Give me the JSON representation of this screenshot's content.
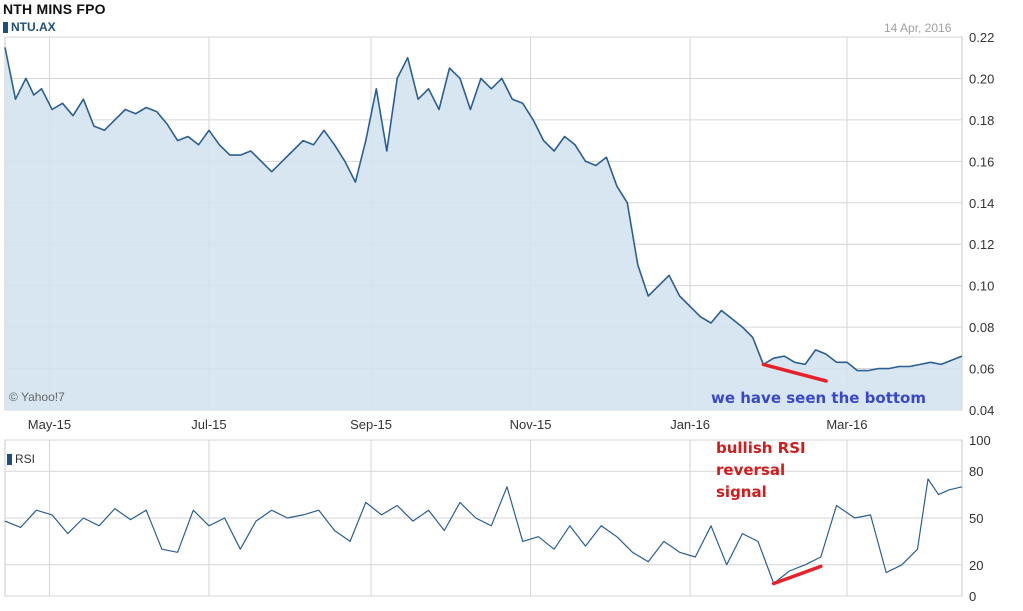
{
  "header": {
    "title": "NTH MINS FPO",
    "ticker": "NTU.AX",
    "date": "14 Apr, 2016",
    "credit": "© Yahoo!7"
  },
  "annotations": {
    "bottom": "we have seen the bottom",
    "signal": [
      "bullish RSI",
      "reversal",
      "signal"
    ],
    "trendline_color": "#e8202a"
  },
  "colors": {
    "line": "#2b5f91",
    "area": "#d4e3f0",
    "grid": "#d6d6d6"
  },
  "chart_data": [
    {
      "type": "area",
      "series": [
        {
          "name": "NTU.AX"
        }
      ],
      "ylim": [
        0.04,
        0.22
      ],
      "yticks": [
        "0.22",
        "0.20",
        "0.18",
        "0.16",
        "0.14",
        "0.12",
        "0.10",
        "0.08",
        "0.06",
        "0.04"
      ],
      "xticks": [
        "May-15",
        "Jul-15",
        "Sep-15",
        "Nov-15",
        "Jan-16",
        "Mar-16"
      ],
      "x_range": [
        "2015-04-14",
        "2016-04-14"
      ],
      "points": [
        [
          "2015-04-14",
          0.215
        ],
        [
          "2015-04-18",
          0.19
        ],
        [
          "2015-04-22",
          0.2
        ],
        [
          "2015-04-25",
          0.192
        ],
        [
          "2015-04-28",
          0.195
        ],
        [
          "2015-05-02",
          0.185
        ],
        [
          "2015-05-06",
          0.188
        ],
        [
          "2015-05-10",
          0.182
        ],
        [
          "2015-05-14",
          0.19
        ],
        [
          "2015-05-18",
          0.177
        ],
        [
          "2015-05-22",
          0.175
        ],
        [
          "2015-05-26",
          0.18
        ],
        [
          "2015-05-30",
          0.185
        ],
        [
          "2015-06-03",
          0.183
        ],
        [
          "2015-06-07",
          0.186
        ],
        [
          "2015-06-11",
          0.184
        ],
        [
          "2015-06-15",
          0.178
        ],
        [
          "2015-06-19",
          0.17
        ],
        [
          "2015-06-23",
          0.172
        ],
        [
          "2015-06-27",
          0.168
        ],
        [
          "2015-07-01",
          0.175
        ],
        [
          "2015-07-05",
          0.168
        ],
        [
          "2015-07-09",
          0.163
        ],
        [
          "2015-07-13",
          0.163
        ],
        [
          "2015-07-17",
          0.165
        ],
        [
          "2015-07-21",
          0.16
        ],
        [
          "2015-07-25",
          0.155
        ],
        [
          "2015-07-29",
          0.16
        ],
        [
          "2015-08-02",
          0.165
        ],
        [
          "2015-08-06",
          0.17
        ],
        [
          "2015-08-10",
          0.168
        ],
        [
          "2015-08-14",
          0.175
        ],
        [
          "2015-08-18",
          0.168
        ],
        [
          "2015-08-22",
          0.16
        ],
        [
          "2015-08-26",
          0.15
        ],
        [
          "2015-08-30",
          0.17
        ],
        [
          "2015-09-03",
          0.195
        ],
        [
          "2015-09-07",
          0.165
        ],
        [
          "2015-09-11",
          0.2
        ],
        [
          "2015-09-15",
          0.21
        ],
        [
          "2015-09-19",
          0.19
        ],
        [
          "2015-09-23",
          0.195
        ],
        [
          "2015-09-27",
          0.185
        ],
        [
          "2015-10-01",
          0.205
        ],
        [
          "2015-10-05",
          0.2
        ],
        [
          "2015-10-09",
          0.185
        ],
        [
          "2015-10-13",
          0.2
        ],
        [
          "2015-10-17",
          0.195
        ],
        [
          "2015-10-21",
          0.2
        ],
        [
          "2015-10-25",
          0.19
        ],
        [
          "2015-10-29",
          0.188
        ],
        [
          "2015-11-02",
          0.18
        ],
        [
          "2015-11-06",
          0.17
        ],
        [
          "2015-11-10",
          0.165
        ],
        [
          "2015-11-14",
          0.172
        ],
        [
          "2015-11-18",
          0.168
        ],
        [
          "2015-11-22",
          0.16
        ],
        [
          "2015-11-26",
          0.158
        ],
        [
          "2015-11-30",
          0.162
        ],
        [
          "2015-12-04",
          0.148
        ],
        [
          "2015-12-08",
          0.14
        ],
        [
          "2015-12-12",
          0.11
        ],
        [
          "2015-12-16",
          0.095
        ],
        [
          "2015-12-20",
          0.1
        ],
        [
          "2015-12-24",
          0.105
        ],
        [
          "2015-12-28",
          0.095
        ],
        [
          "2016-01-01",
          0.09
        ],
        [
          "2016-01-05",
          0.085
        ],
        [
          "2016-01-09",
          0.082
        ],
        [
          "2016-01-13",
          0.088
        ],
        [
          "2016-01-17",
          0.084
        ],
        [
          "2016-01-21",
          0.08
        ],
        [
          "2016-01-25",
          0.075
        ],
        [
          "2016-01-29",
          0.062
        ],
        [
          "2016-02-02",
          0.065
        ],
        [
          "2016-02-06",
          0.066
        ],
        [
          "2016-02-10",
          0.063
        ],
        [
          "2016-02-14",
          0.062
        ],
        [
          "2016-02-18",
          0.069
        ],
        [
          "2016-02-22",
          0.067
        ],
        [
          "2016-02-26",
          0.063
        ],
        [
          "2016-03-01",
          0.063
        ],
        [
          "2016-03-05",
          0.059
        ],
        [
          "2016-03-09",
          0.059
        ],
        [
          "2016-03-13",
          0.06
        ],
        [
          "2016-03-17",
          0.06
        ],
        [
          "2016-03-21",
          0.061
        ],
        [
          "2016-03-25",
          0.061
        ],
        [
          "2016-03-29",
          0.062
        ],
        [
          "2016-04-02",
          0.063
        ],
        [
          "2016-04-06",
          0.062
        ],
        [
          "2016-04-10",
          0.064
        ],
        [
          "2016-04-14",
          0.066
        ]
      ],
      "trendline": [
        [
          "2016-01-29",
          0.062
        ],
        [
          "2016-02-22",
          0.054
        ]
      ],
      "grid": true
    },
    {
      "type": "line",
      "series": [
        {
          "name": "RSI"
        }
      ],
      "ylim": [
        0,
        100
      ],
      "yticks": [
        "100",
        "80",
        "50",
        "20",
        "0"
      ],
      "grid": true,
      "points": [
        [
          "2015-04-14",
          48
        ],
        [
          "2015-04-20",
          44
        ],
        [
          "2015-04-26",
          55
        ],
        [
          "2015-05-02",
          52
        ],
        [
          "2015-05-08",
          40
        ],
        [
          "2015-05-14",
          50
        ],
        [
          "2015-05-20",
          45
        ],
        [
          "2015-05-26",
          56
        ],
        [
          "2015-06-01",
          49
        ],
        [
          "2015-06-07",
          55
        ],
        [
          "2015-06-13",
          30
        ],
        [
          "2015-06-19",
          28
        ],
        [
          "2015-06-25",
          55
        ],
        [
          "2015-07-01",
          45
        ],
        [
          "2015-07-07",
          50
        ],
        [
          "2015-07-13",
          30
        ],
        [
          "2015-07-19",
          48
        ],
        [
          "2015-07-25",
          55
        ],
        [
          "2015-07-31",
          50
        ],
        [
          "2015-08-06",
          52
        ],
        [
          "2015-08-12",
          55
        ],
        [
          "2015-08-18",
          42
        ],
        [
          "2015-08-24",
          35
        ],
        [
          "2015-08-30",
          60
        ],
        [
          "2015-09-05",
          52
        ],
        [
          "2015-09-11",
          58
        ],
        [
          "2015-09-17",
          48
        ],
        [
          "2015-09-23",
          55
        ],
        [
          "2015-09-29",
          42
        ],
        [
          "2015-10-05",
          60
        ],
        [
          "2015-10-11",
          50
        ],
        [
          "2015-10-17",
          45
        ],
        [
          "2015-10-23",
          70
        ],
        [
          "2015-10-29",
          35
        ],
        [
          "2015-11-04",
          38
        ],
        [
          "2015-11-10",
          30
        ],
        [
          "2015-11-16",
          45
        ],
        [
          "2015-11-22",
          32
        ],
        [
          "2015-11-28",
          45
        ],
        [
          "2015-12-04",
          38
        ],
        [
          "2015-12-10",
          28
        ],
        [
          "2015-12-16",
          22
        ],
        [
          "2015-12-22",
          35
        ],
        [
          "2015-12-28",
          28
        ],
        [
          "2016-01-03",
          25
        ],
        [
          "2016-01-09",
          45
        ],
        [
          "2016-01-15",
          20
        ],
        [
          "2016-01-21",
          40
        ],
        [
          "2016-01-27",
          35
        ],
        [
          "2016-02-02",
          8
        ],
        [
          "2016-02-08",
          16
        ],
        [
          "2016-02-14",
          20
        ],
        [
          "2016-02-20",
          25
        ],
        [
          "2016-02-26",
          58
        ],
        [
          "2016-03-04",
          50
        ],
        [
          "2016-03-10",
          52
        ],
        [
          "2016-03-16",
          15
        ],
        [
          "2016-03-22",
          20
        ],
        [
          "2016-03-28",
          30
        ],
        [
          "2016-04-01",
          75
        ],
        [
          "2016-04-05",
          65
        ],
        [
          "2016-04-09",
          68
        ],
        [
          "2016-04-14",
          70
        ]
      ],
      "trendline": [
        [
          "2016-02-02",
          8
        ],
        [
          "2016-02-20",
          19
        ]
      ]
    }
  ]
}
